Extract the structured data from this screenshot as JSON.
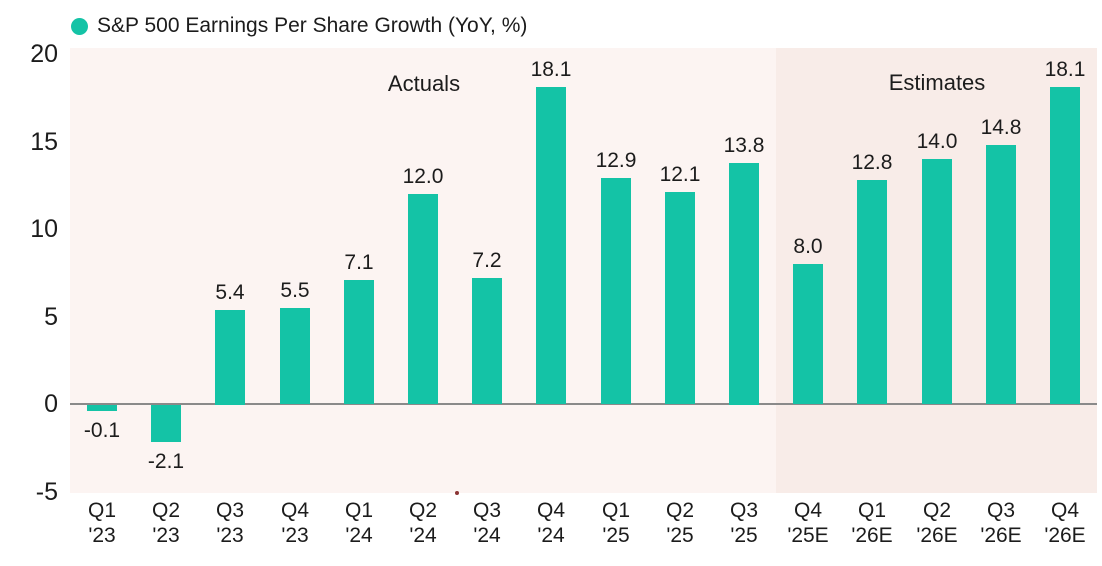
{
  "chart_data": {
    "type": "bar",
    "title": "S&P 500 Earnings Per Share Growth (YoY, %)",
    "legend_label": "S&P 500 Earnings Per Share Growth (YoY, %)",
    "legend_position": "top-left",
    "categories": [
      "Q1 '23",
      "Q2 '23",
      "Q3 '23",
      "Q4 '23",
      "Q1 '24",
      "Q2 '24",
      "Q3 '24",
      "Q4 '24",
      "Q1 '25",
      "Q2 '25",
      "Q3 '25",
      "Q4 '25E",
      "Q1 '26E",
      "Q2 '26E",
      "Q3 '26E",
      "Q4 '26E"
    ],
    "category_lines": [
      [
        "Q1",
        "'23"
      ],
      [
        "Q2",
        "'23"
      ],
      [
        "Q3",
        "'23"
      ],
      [
        "Q4",
        "'23"
      ],
      [
        "Q1",
        "'24"
      ],
      [
        "Q2",
        "'24"
      ],
      [
        "Q3",
        "'24"
      ],
      [
        "Q4",
        "'24"
      ],
      [
        "Q1",
        "'25"
      ],
      [
        "Q2",
        "'25"
      ],
      [
        "Q3",
        "'25"
      ],
      [
        "Q4",
        "'25E"
      ],
      [
        "Q1",
        "'26E"
      ],
      [
        "Q2",
        "'26E"
      ],
      [
        "Q3",
        "'26E"
      ],
      [
        "Q4",
        "'26E"
      ]
    ],
    "values": [
      -0.1,
      -2.1,
      5.4,
      5.5,
      7.1,
      12.0,
      7.2,
      18.1,
      12.9,
      12.1,
      13.8,
      8.0,
      12.8,
      14.0,
      14.8,
      18.1
    ],
    "bar_labels": [
      "-0.1",
      "-2.1",
      "5.4",
      "5.5",
      "7.1",
      "12.0",
      "7.2",
      "18.1",
      "12.9",
      "12.1",
      "13.8",
      "8.0",
      "12.8",
      "14.0",
      "14.8",
      "18.1"
    ],
    "xlabel": "",
    "ylabel": "",
    "ylim": [
      -5,
      20.4
    ],
    "yticks": [
      20,
      15,
      10,
      5,
      0,
      -5
    ],
    "grid": false,
    "regions": [
      {
        "name": "Actuals",
        "start_index": 0,
        "end_index": 10
      },
      {
        "name": "Estimates",
        "start_index": 11,
        "end_index": 15
      }
    ],
    "colors": {
      "bar": "#14c3a6",
      "legend_dot": "#14c3a6",
      "actuals_background": "#fcf4f2",
      "estimates_background": "#f8ece8",
      "zero_line": "#8a8a8a",
      "text": "#1c1c1c"
    }
  }
}
